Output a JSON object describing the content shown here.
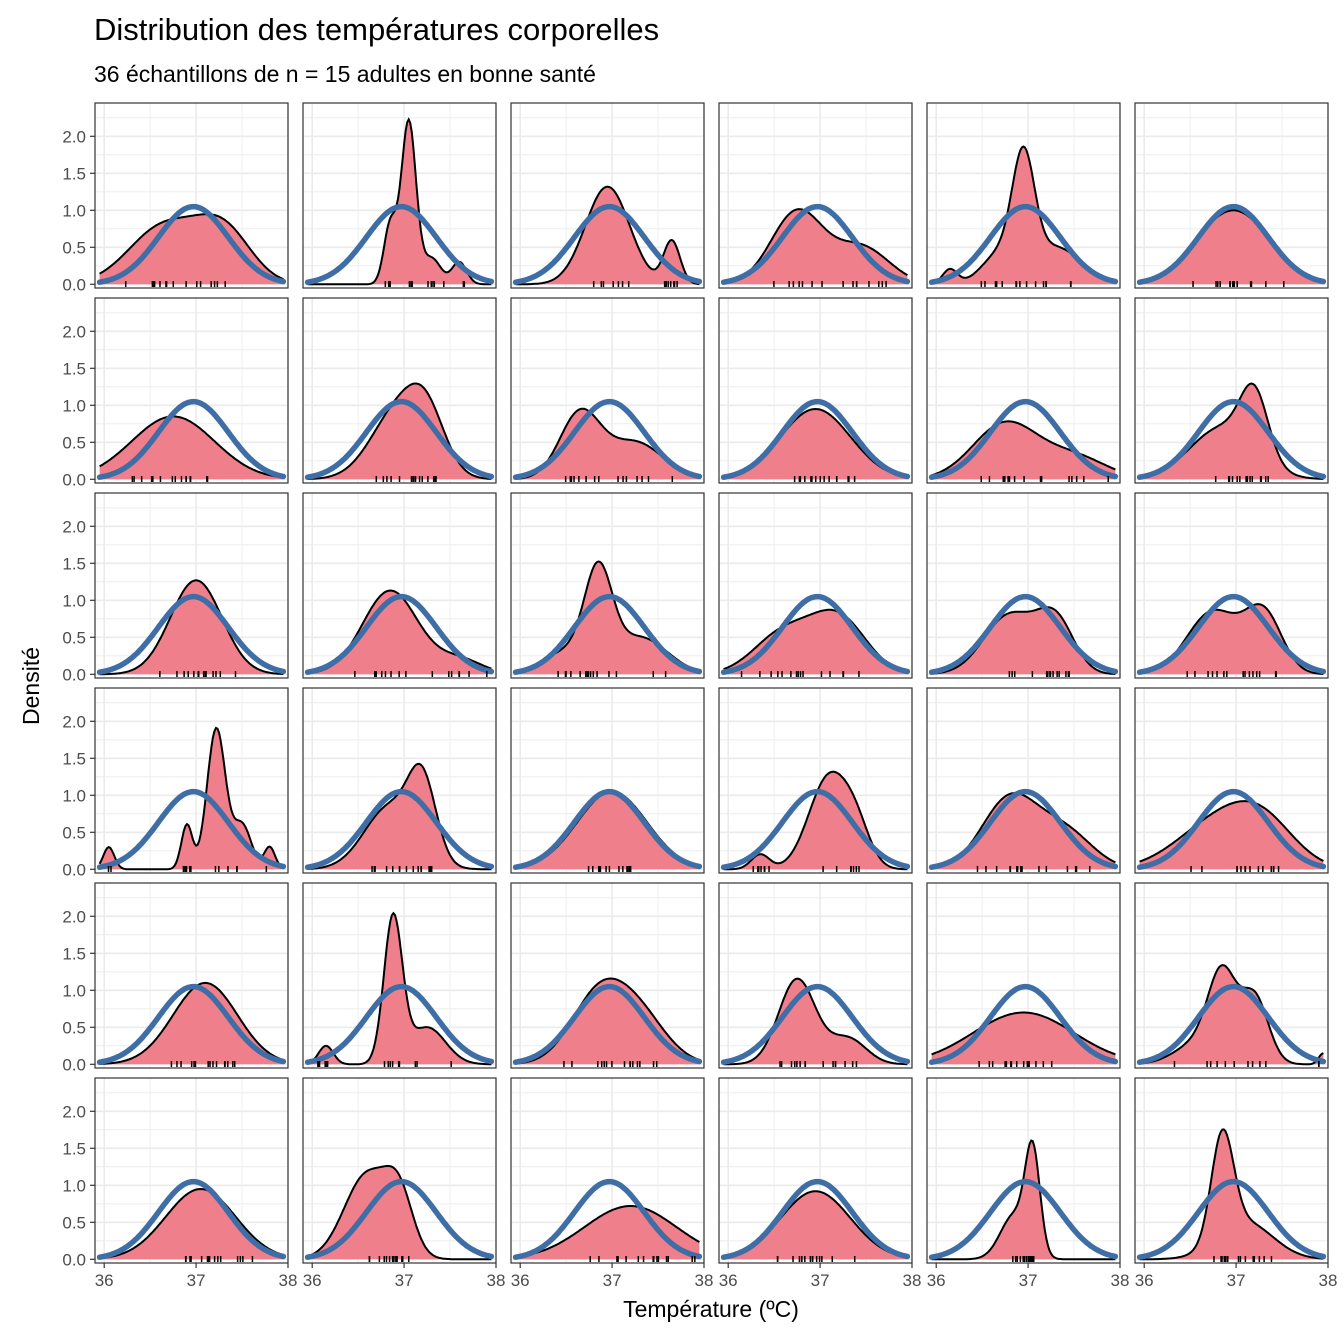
{
  "chart_data": {
    "type": "area",
    "title": "Distribution des températures corporelles",
    "subtitle": "36 échantillons de n = 15 adultes en bonne santé",
    "xlabel": "Température (ºC)",
    "ylabel": "Densité",
    "layout": "facet grid 6 rows x 6 columns",
    "xlim": [
      35.9,
      38.0
    ],
    "ylim": [
      -0.05,
      2.45
    ],
    "x_ticks": [
      36,
      37,
      38
    ],
    "x_tick_labels": [
      "36",
      "37",
      "38"
    ],
    "y_ticks": [
      0.0,
      0.5,
      1.0,
      1.5,
      2.0
    ],
    "y_tick_labels": [
      "0.0",
      "0.5",
      "1.0",
      "1.5",
      "2.0"
    ],
    "grid": true,
    "colors": {
      "density_fill": "#f07f8c",
      "density_line": "#000000",
      "normal_curve": "#3f6ea6",
      "panel_border": "#333333",
      "grid": "#ebebeb"
    },
    "reference_normal": {
      "name": "normal",
      "mean": 36.97,
      "sd": 0.38,
      "peak": 1.05
    },
    "series": [
      {
        "panel": 1,
        "peaks": [
          [
            36.65,
            0.78,
            0.38
          ],
          [
            37.3,
            0.7,
            0.3
          ]
        ]
      },
      {
        "panel": 2,
        "peaks": [
          [
            36.85,
            0.8,
            0.07
          ],
          [
            37.05,
            2.2,
            0.08
          ],
          [
            37.3,
            0.35,
            0.1
          ],
          [
            37.6,
            0.3,
            0.08
          ]
        ]
      },
      {
        "panel": 3,
        "peaks": [
          [
            36.95,
            1.32,
            0.24
          ],
          [
            37.65,
            0.58,
            0.09
          ]
        ]
      },
      {
        "panel": 4,
        "peaks": [
          [
            36.75,
            0.98,
            0.28
          ],
          [
            37.45,
            0.5,
            0.3
          ]
        ]
      },
      {
        "panel": 5,
        "peaks": [
          [
            36.15,
            0.2,
            0.08
          ],
          [
            36.95,
            1.45,
            0.12
          ],
          [
            37.3,
            0.5,
            0.28
          ],
          [
            36.7,
            0.4,
            0.2
          ]
        ]
      },
      {
        "panel": 6,
        "peaks": [
          [
            36.97,
            1.0,
            0.4
          ]
        ]
      },
      {
        "panel": 7,
        "peaks": [
          [
            36.75,
            0.85,
            0.45
          ]
        ]
      },
      {
        "panel": 8,
        "peaks": [
          [
            36.95,
            0.95,
            0.3
          ],
          [
            37.25,
            0.6,
            0.2
          ]
        ]
      },
      {
        "panel": 9,
        "peaks": [
          [
            36.65,
            0.88,
            0.22
          ],
          [
            37.25,
            0.5,
            0.3
          ]
        ]
      },
      {
        "panel": 10,
        "peaks": [
          [
            36.95,
            0.95,
            0.38
          ]
        ]
      },
      {
        "panel": 11,
        "peaks": [
          [
            36.75,
            0.75,
            0.35
          ],
          [
            37.5,
            0.3,
            0.35
          ]
        ]
      },
      {
        "panel": 12,
        "peaks": [
          [
            36.85,
            0.7,
            0.35
          ],
          [
            37.2,
            0.85,
            0.15
          ]
        ]
      },
      {
        "panel": 13,
        "peaks": [
          [
            37.0,
            1.27,
            0.28
          ]
        ]
      },
      {
        "panel": 14,
        "peaks": [
          [
            36.85,
            1.13,
            0.3
          ],
          [
            37.6,
            0.2,
            0.25
          ]
        ]
      },
      {
        "panel": 15,
        "peaks": [
          [
            36.85,
            1.25,
            0.15
          ],
          [
            36.5,
            0.3,
            0.25
          ],
          [
            37.3,
            0.5,
            0.3
          ]
        ]
      },
      {
        "panel": 16,
        "peaks": [
          [
            36.6,
            0.55,
            0.32
          ],
          [
            37.2,
            0.75,
            0.3
          ]
        ]
      },
      {
        "panel": 17,
        "peaks": [
          [
            36.8,
            0.8,
            0.28
          ],
          [
            37.3,
            0.7,
            0.2
          ]
        ]
      },
      {
        "panel": 18,
        "peaks": [
          [
            36.75,
            0.85,
            0.28
          ],
          [
            37.3,
            0.8,
            0.2
          ]
        ]
      },
      {
        "panel": 19,
        "peaks": [
          [
            36.05,
            0.3,
            0.06
          ],
          [
            36.9,
            0.6,
            0.06
          ],
          [
            37.22,
            1.9,
            0.1
          ],
          [
            37.5,
            0.6,
            0.1
          ],
          [
            37.8,
            0.3,
            0.06
          ]
        ]
      },
      {
        "panel": 20,
        "peaks": [
          [
            36.85,
            0.85,
            0.28
          ],
          [
            37.2,
            1.0,
            0.15
          ]
        ]
      },
      {
        "panel": 21,
        "peaks": [
          [
            37.0,
            1.05,
            0.38
          ]
        ]
      },
      {
        "panel": 22,
        "peaks": [
          [
            36.35,
            0.2,
            0.1
          ],
          [
            37.1,
            1.25,
            0.22
          ],
          [
            37.4,
            0.4,
            0.15
          ]
        ]
      },
      {
        "panel": 23,
        "peaks": [
          [
            36.8,
            0.95,
            0.3
          ],
          [
            37.4,
            0.5,
            0.3
          ]
        ]
      },
      {
        "panel": 24,
        "peaks": [
          [
            36.8,
            0.62,
            0.45
          ],
          [
            37.3,
            0.5,
            0.35
          ]
        ]
      },
      {
        "panel": 25,
        "peaks": [
          [
            37.1,
            1.1,
            0.35
          ]
        ]
      },
      {
        "panel": 26,
        "peaks": [
          [
            36.15,
            0.25,
            0.08
          ],
          [
            36.88,
            1.95,
            0.1
          ],
          [
            37.25,
            0.5,
            0.2
          ]
        ]
      },
      {
        "panel": 27,
        "peaks": [
          [
            36.85,
            0.9,
            0.3
          ],
          [
            37.3,
            0.6,
            0.3
          ]
        ]
      },
      {
        "panel": 28,
        "peaks": [
          [
            36.75,
            1.15,
            0.2
          ],
          [
            37.3,
            0.35,
            0.2
          ]
        ]
      },
      {
        "panel": 29,
        "peaks": [
          [
            36.95,
            0.7,
            0.55
          ]
        ]
      },
      {
        "panel": 30,
        "peaks": [
          [
            36.85,
            1.1,
            0.15
          ],
          [
            37.2,
            0.9,
            0.15
          ],
          [
            36.6,
            0.3,
            0.25
          ],
          [
            37.95,
            0.15,
            0.05
          ]
        ]
      },
      {
        "panel": 31,
        "peaks": [
          [
            37.05,
            0.95,
            0.38
          ]
        ]
      },
      {
        "panel": 32,
        "peaks": [
          [
            36.6,
            1.15,
            0.25
          ],
          [
            36.95,
            0.7,
            0.15
          ]
        ]
      },
      {
        "panel": 33,
        "peaks": [
          [
            37.2,
            0.72,
            0.5
          ]
        ]
      },
      {
        "panel": 34,
        "peaks": [
          [
            36.95,
            0.92,
            0.38
          ]
        ]
      },
      {
        "panel": 35,
        "peaks": [
          [
            36.85,
            0.6,
            0.15
          ],
          [
            37.05,
            1.35,
            0.08
          ]
        ]
      },
      {
        "panel": 36,
        "peaks": [
          [
            36.85,
            1.4,
            0.12
          ],
          [
            37.1,
            0.5,
            0.3
          ]
        ]
      }
    ]
  }
}
